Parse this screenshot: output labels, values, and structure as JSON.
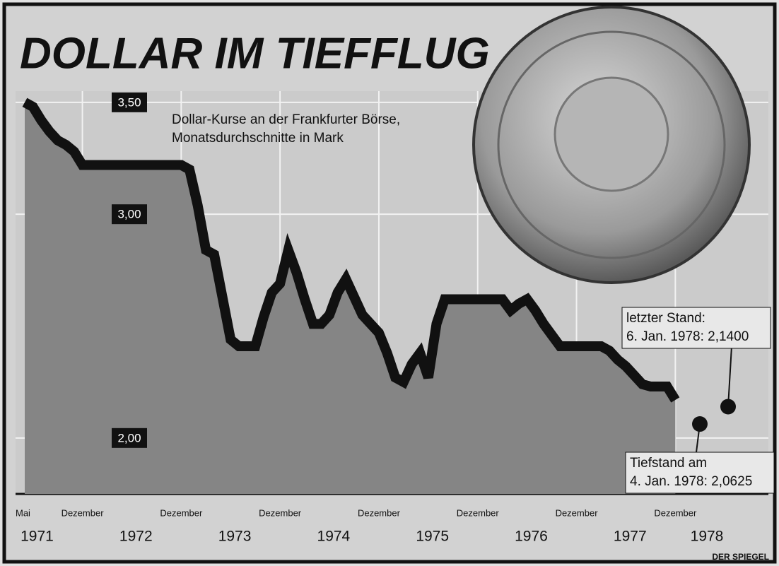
{
  "chart_data": {
    "type": "line",
    "title": "DOLLAR IM TIEFFLUG",
    "subtitle": [
      "Dollar-Kurse an der Frankfurter Börse,",
      "Monatsdurchschnitte in Mark"
    ],
    "categories": [
      "Mai",
      null,
      null,
      null,
      null,
      null,
      null,
      "Dezember",
      null,
      null,
      null,
      null,
      null,
      null,
      null,
      null,
      null,
      null,
      null,
      "Dezember",
      null,
      null,
      null,
      null,
      null,
      null,
      null,
      null,
      null,
      null,
      null,
      "Dezember",
      null,
      null,
      null,
      null,
      null,
      null,
      null,
      null,
      null,
      null,
      null,
      "Dezember",
      null,
      null,
      null,
      null,
      null,
      null,
      null,
      null,
      null,
      null,
      null,
      "Dezember",
      null,
      null,
      null,
      null,
      null,
      null,
      null,
      null,
      null,
      null,
      null,
      "Dezember",
      null,
      null,
      null,
      null,
      null,
      null,
      null,
      null,
      null,
      null,
      null,
      "Dezember"
    ],
    "years": [
      "1971",
      "1972",
      "1973",
      "1974",
      "1975",
      "1976",
      "1977",
      "1978"
    ],
    "values": [
      3.5,
      3.48,
      3.42,
      3.37,
      3.33,
      3.31,
      3.28,
      3.22,
      3.22,
      3.22,
      3.22,
      3.22,
      3.22,
      3.22,
      3.22,
      3.22,
      3.22,
      3.22,
      3.22,
      3.22,
      3.2,
      3.04,
      2.84,
      2.82,
      2.63,
      2.44,
      2.41,
      2.41,
      2.41,
      2.54,
      2.65,
      2.69,
      2.84,
      2.74,
      2.62,
      2.51,
      2.51,
      2.55,
      2.65,
      2.71,
      2.63,
      2.55,
      2.51,
      2.47,
      2.38,
      2.27,
      2.25,
      2.33,
      2.38,
      2.27,
      2.51,
      2.62,
      2.62,
      2.62,
      2.62,
      2.62,
      2.62,
      2.62,
      2.62,
      2.57,
      2.6,
      2.62,
      2.57,
      2.51,
      2.46,
      2.41,
      2.41,
      2.41,
      2.41,
      2.41,
      2.41,
      2.39,
      2.35,
      2.32,
      2.28,
      2.24,
      2.23,
      2.23,
      2.23,
      2.17
    ],
    "color": "#111111",
    "area_color": "#858585",
    "ylim": [
      1.75,
      3.55
    ],
    "yticks": [
      {
        "value": 2.0,
        "label": "2,00"
      },
      {
        "value": 3.0,
        "label": "3,00"
      },
      {
        "value": 3.5,
        "label": "3,50"
      }
    ],
    "grid": true,
    "annotations": [
      {
        "lines": [
          "Tiefstand am",
          "4. Jan. 1978: 2,0625"
        ],
        "value": 2.0625
      },
      {
        "lines": [
          "letzter Stand:",
          "6. Jan. 1978: 2,1400"
        ],
        "value": 2.14
      }
    ],
    "source": "DER SPIEGEL"
  }
}
